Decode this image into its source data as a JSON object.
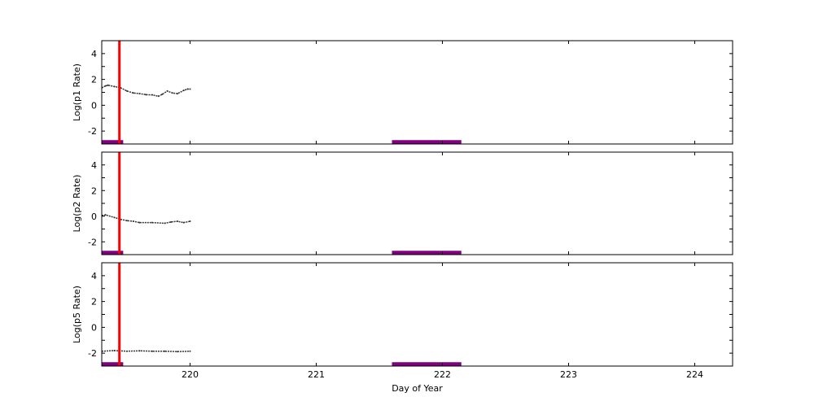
{
  "chart_data": [
    {
      "type": "line",
      "ylabel": "Log(p1 Rate)",
      "xlim": [
        219.3,
        224.3
      ],
      "ylim": [
        -3,
        5
      ],
      "yticks": [
        -2,
        0,
        2,
        4
      ],
      "series": [
        {
          "color": "#333333",
          "x": [
            219.3,
            219.33,
            219.35,
            219.4,
            219.45,
            219.5,
            219.55,
            219.6,
            219.65,
            219.7,
            219.75,
            219.78,
            219.82,
            219.86,
            219.9,
            219.95,
            219.98,
            220.0
          ],
          "y": [
            1.35,
            1.5,
            1.55,
            1.45,
            1.35,
            1.1,
            0.95,
            0.9,
            0.82,
            0.8,
            0.7,
            0.85,
            1.1,
            0.95,
            0.9,
            1.15,
            1.25,
            1.25
          ]
        }
      ]
    },
    {
      "type": "line",
      "ylabel": "Log(p2 Rate)",
      "xlim": [
        219.3,
        224.3
      ],
      "ylim": [
        -3,
        5
      ],
      "yticks": [
        -2,
        0,
        2,
        4
      ],
      "series": [
        {
          "color": "#333333",
          "x": [
            219.3,
            219.33,
            219.4,
            219.45,
            219.5,
            219.55,
            219.6,
            219.7,
            219.8,
            219.85,
            219.9,
            219.95,
            220.0
          ],
          "y": [
            0.05,
            0.1,
            -0.1,
            -0.25,
            -0.35,
            -0.4,
            -0.5,
            -0.5,
            -0.55,
            -0.45,
            -0.4,
            -0.5,
            -0.4
          ]
        }
      ]
    },
    {
      "type": "line",
      "ylabel": "Log(p5 Rate)",
      "xlabel": "Day of Year",
      "xlim": [
        219.3,
        224.3
      ],
      "ylim": [
        -3,
        5
      ],
      "yticks": [
        -2,
        0,
        2,
        4
      ],
      "xticks": [
        220,
        221,
        222,
        223,
        224
      ],
      "series": [
        {
          "color": "#333333",
          "x": [
            219.3,
            219.4,
            219.5,
            219.6,
            219.7,
            219.8,
            219.9,
            220.0
          ],
          "y": [
            -1.85,
            -1.8,
            -1.85,
            -1.82,
            -1.85,
            -1.85,
            -1.88,
            -1.85
          ]
        }
      ]
    }
  ],
  "markers": {
    "vertical_line": {
      "x": 219.44,
      "color": "#ff0000"
    },
    "intervals": [
      {
        "x0": 219.3,
        "x1": 219.47
      },
      {
        "x0": 221.6,
        "x1": 222.15
      }
    ],
    "interval_y": [
      -3,
      -2.7
    ],
    "interval_color": "#800080"
  }
}
